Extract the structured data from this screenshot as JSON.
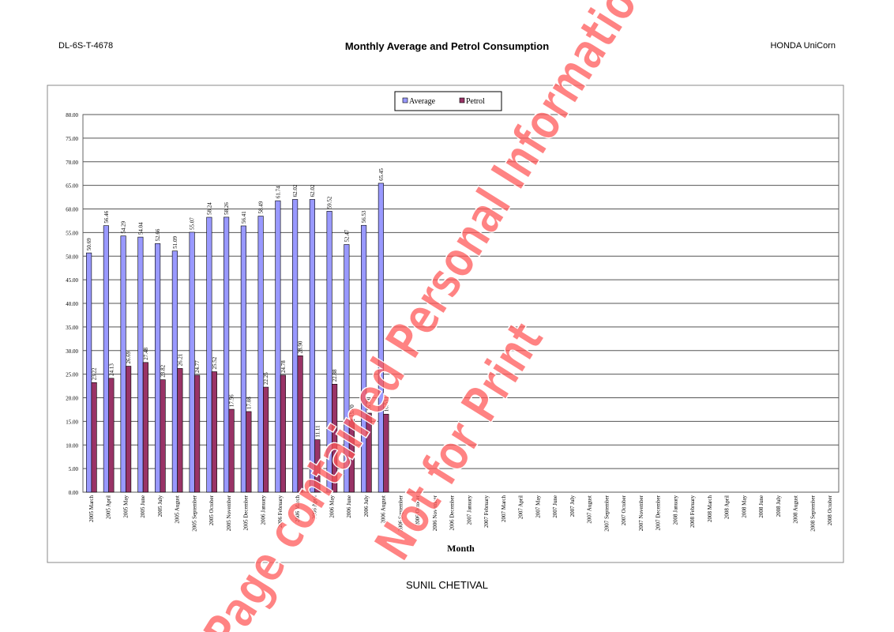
{
  "header": {
    "left": "DL-6S-T-4678",
    "right": "HONDA UniCorn"
  },
  "footer": "SUNIL CHETIVAL",
  "watermark": [
    "Page contained Personal Information",
    "Not for Print"
  ],
  "chart_data": {
    "type": "bar",
    "title": "Monthly Average and Petrol Consumption",
    "x_label": "Month",
    "categories": [
      "2005 March",
      "2005 April",
      "2005 May",
      "2005 June",
      "2005 July",
      "2005 August",
      "2005 September",
      "2005 October",
      "2005 November",
      "2005 December",
      "2006 January",
      "2006 February",
      "2006 March",
      "2006 April",
      "2006 May",
      "2006 June",
      "2006 July",
      "2006 August",
      "2006 September",
      "2006 October",
      "2006 November",
      "2006 December",
      "2007 January",
      "2007 February",
      "2007 March",
      "2007 April",
      "2007 May",
      "2007 June",
      "2007 July",
      "2007 August",
      "2007 September",
      "2007 October",
      "2007 November",
      "2007 December",
      "2008 January",
      "2008 February",
      "2008 March",
      "2008 April",
      "2008 May",
      "2008 June",
      "2008 July",
      "2008 August",
      "2008 September",
      "2008 October"
    ],
    "series": [
      {
        "name": "Average",
        "color": "#9999ff",
        "values": [
          50.69,
          56.46,
          54.29,
          54.04,
          52.66,
          51.09,
          55.07,
          58.24,
          58.26,
          56.41,
          58.49,
          61.74,
          62.02,
          62.02,
          59.52,
          52.47,
          56.53,
          65.45,
          null,
          null,
          null,
          null,
          null,
          null,
          null,
          null,
          null,
          null,
          null,
          null,
          null,
          null,
          null,
          null,
          null,
          null,
          null,
          null,
          null,
          null,
          null,
          null,
          null,
          null
        ],
        "value_labels": [
          "50.69",
          "56.46",
          "54.29",
          "54.04",
          "52.66",
          "51.09",
          "55.07",
          "58.24",
          "58.26",
          "56.41",
          "58.49",
          "61.74",
          "62.02",
          "62.02",
          "59.52",
          "52.47",
          "56.53",
          "65.45",
          null,
          null,
          null,
          null,
          null,
          null,
          null,
          null,
          null,
          null,
          null,
          null,
          null,
          null,
          null,
          null,
          null,
          null,
          null,
          null,
          null,
          null,
          null,
          null,
          null,
          null
        ]
      },
      {
        "name": "Petrol",
        "color": "#993366",
        "values": [
          23.22,
          24.13,
          26.69,
          27.48,
          23.82,
          26.21,
          24.77,
          25.52,
          17.56,
          17.08,
          22.25,
          24.78,
          28.9,
          11.11,
          22.88,
          15.4,
          16.74,
          16.53,
          null,
          null,
          null,
          null,
          null,
          null,
          null,
          null,
          null,
          null,
          null,
          null,
          null,
          null,
          null,
          null,
          null,
          null,
          null,
          null,
          null,
          null,
          null,
          null,
          null,
          null
        ],
        "value_labels": [
          "23.22",
          "24.13",
          "26.69",
          "27.48",
          "23.82",
          "26.21",
          "24.77",
          "25.52",
          "17.56",
          "17.08",
          "22.25",
          "24.78",
          "28.90",
          "11.11",
          "22.88",
          "15.40",
          "16.74",
          "16.53",
          null,
          null,
          null,
          null,
          null,
          null,
          null,
          null,
          null,
          null,
          null,
          null,
          null,
          null,
          null,
          null,
          null,
          null,
          null,
          null,
          null,
          null,
          null,
          null,
          null,
          null
        ]
      }
    ],
    "ylim": [
      0,
      80
    ],
    "yticks": [
      {
        "value": 0,
        "label": "0.00"
      },
      {
        "value": 5,
        "label": "5.00"
      },
      {
        "value": 10,
        "label": "10.00"
      },
      {
        "value": 15,
        "label": "15.00"
      },
      {
        "value": 20,
        "label": "20.00"
      },
      {
        "value": 25,
        "label": "25.00"
      },
      {
        "value": 30,
        "label": "30.00"
      },
      {
        "value": 35,
        "label": "35.00"
      },
      {
        "value": 40,
        "label": "40.00"
      },
      {
        "value": 45,
        "label": "45.00"
      },
      {
        "value": 50,
        "label": "50.00"
      },
      {
        "value": 55,
        "label": "55.00"
      },
      {
        "value": 60,
        "label": "60.00"
      },
      {
        "value": 65,
        "label": "65.00"
      },
      {
        "value": 70,
        "label": "70.00"
      },
      {
        "value": 75,
        "label": "75.00"
      },
      {
        "value": 80,
        "label": "80.00"
      }
    ],
    "grid": true,
    "legend": "top"
  }
}
